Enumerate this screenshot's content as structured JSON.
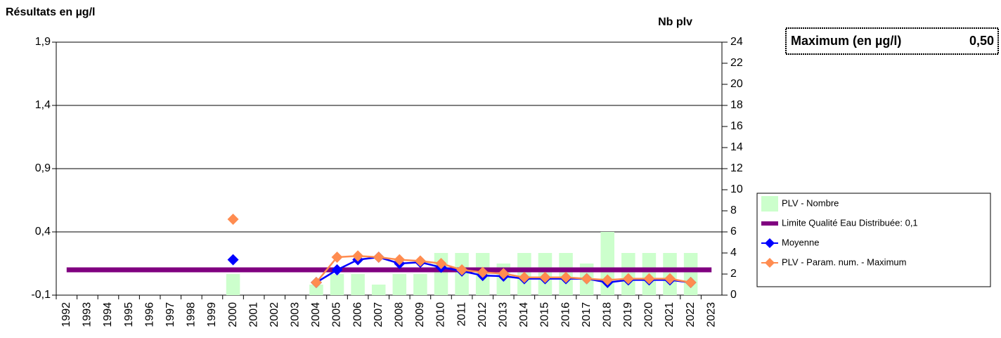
{
  "chart_data": {
    "type": "combo",
    "y_label": "Résultats en µg/l",
    "y2_label": "Nb plv",
    "max_box": {
      "label": "Maximum (en µg/l)",
      "value": "0,50"
    },
    "categories": [
      "1992",
      "1993",
      "1994",
      "1995",
      "1996",
      "1997",
      "1998",
      "1999",
      "2000",
      "2001",
      "2002",
      "2003",
      "2004",
      "2005",
      "2006",
      "2007",
      "2008",
      "2009",
      "2010",
      "2011",
      "2012",
      "2013",
      "2014",
      "2015",
      "2016",
      "2017",
      "2018",
      "2019",
      "2020",
      "2021",
      "2022",
      "2023"
    ],
    "ylim": [
      -0.1,
      1.9
    ],
    "yticks": [
      {
        "value": -0.1,
        "label": "-0,1"
      },
      {
        "value": 0.4,
        "label": "0,4"
      },
      {
        "value": 0.9,
        "label": "0,9"
      },
      {
        "value": 1.4,
        "label": "1,4"
      },
      {
        "value": 1.9,
        "label": "1,9"
      }
    ],
    "y2lim": [
      0,
      24
    ],
    "y2ticks": [
      0,
      2,
      4,
      6,
      8,
      10,
      12,
      14,
      16,
      18,
      20,
      22,
      24
    ],
    "grid": true,
    "legend": "right",
    "series": [
      {
        "name": "PLV - Nombre",
        "type": "bar",
        "axis": "y2",
        "color": "#ccffcc",
        "values": [
          null,
          null,
          null,
          null,
          null,
          null,
          null,
          null,
          2,
          null,
          null,
          null,
          1,
          2,
          2,
          1,
          2,
          2,
          4,
          4,
          4,
          3,
          4,
          4,
          4,
          3,
          6,
          4,
          4,
          4,
          4,
          null
        ]
      },
      {
        "name": "Limite Qualité Eau Distribuée: 0,1",
        "type": "line",
        "color": "#800080",
        "values": [
          0.1,
          0.1,
          0.1,
          0.1,
          0.1,
          0.1,
          0.1,
          0.1,
          0.1,
          0.1,
          0.1,
          0.1,
          0.1,
          0.1,
          0.1,
          0.1,
          0.1,
          0.1,
          0.1,
          0.1,
          0.1,
          0.1,
          0.1,
          0.1,
          0.1,
          0.1,
          0.1,
          0.1,
          0.1,
          0.1,
          0.1,
          0.1
        ]
      },
      {
        "name": "Moyenne",
        "type": "line",
        "marker": true,
        "color": "#0000ff",
        "values": [
          null,
          null,
          null,
          null,
          null,
          null,
          null,
          null,
          0.18,
          null,
          null,
          null,
          0.0,
          0.1,
          0.18,
          0.2,
          0.15,
          0.16,
          0.12,
          0.09,
          0.055,
          0.05,
          0.03,
          0.03,
          0.03,
          0.03,
          0.0,
          0.02,
          0.02,
          0.02,
          0.0,
          null
        ]
      },
      {
        "name": "PLV - Param. num. - Maximum",
        "type": "line",
        "marker": true,
        "color": "#ff8c50",
        "values": [
          null,
          null,
          null,
          null,
          null,
          null,
          null,
          null,
          0.5,
          null,
          null,
          null,
          0.0,
          0.2,
          0.21,
          0.2,
          0.18,
          0.17,
          0.15,
          0.1,
          0.08,
          0.07,
          0.04,
          0.04,
          0.04,
          0.03,
          0.02,
          0.03,
          0.03,
          0.03,
          0.0,
          null
        ]
      }
    ]
  }
}
